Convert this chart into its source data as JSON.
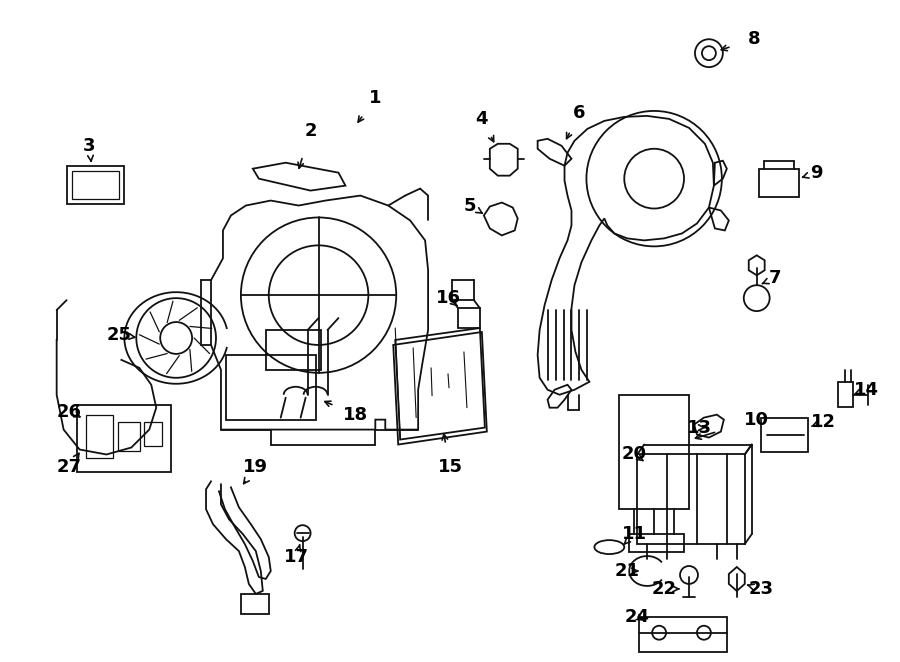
{
  "background_color": "#ffffff",
  "line_color": "#111111",
  "label_color": "#000000",
  "fig_width": 9.0,
  "fig_height": 6.62,
  "dpi": 100
}
